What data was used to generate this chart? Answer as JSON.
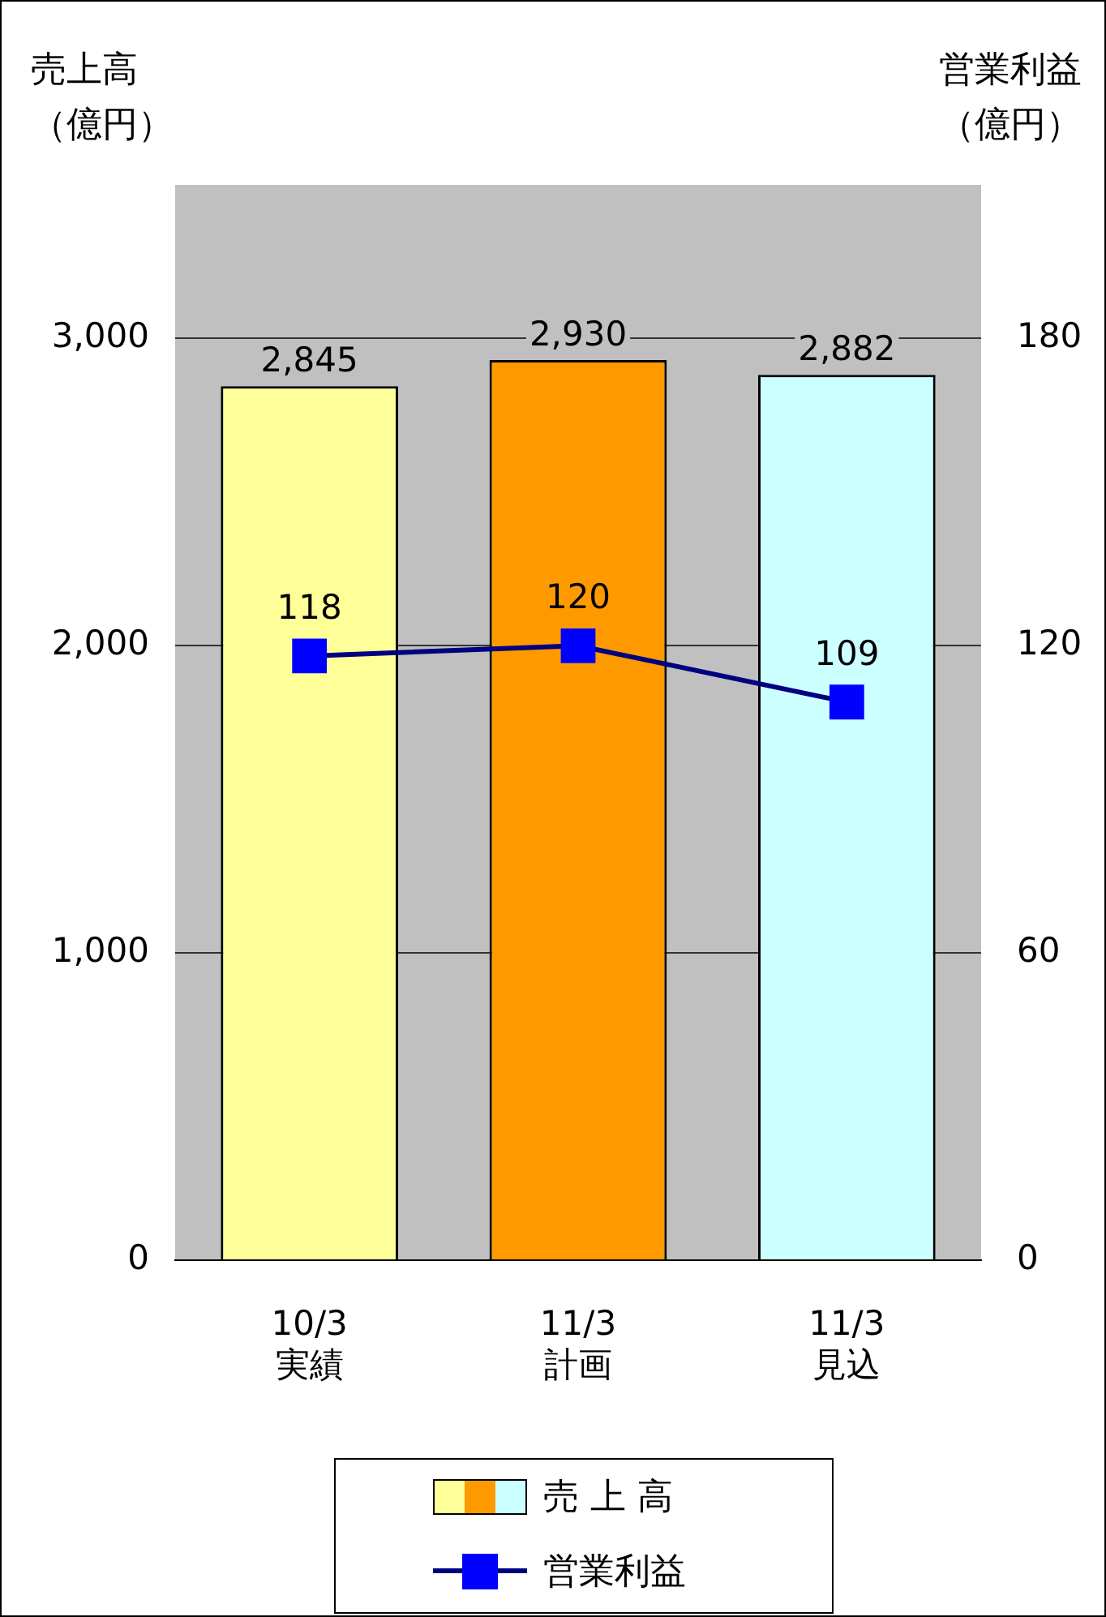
{
  "chart_data": {
    "type": "bar",
    "ylabel": "売上高（億円）",
    "y2label": "営業利益（億円）",
    "categories": [
      "10/3\n実績",
      "11/3\n計画",
      "11/3\n見込"
    ],
    "series": [
      {
        "name": "売 上 高",
        "colors": [
          "#ffff99",
          "#ff9900",
          "#ccffff"
        ],
        "values": [
          2845,
          2930,
          2882
        ],
        "value_labels": [
          "2,845",
          "2,930",
          "2,882"
        ]
      },
      {
        "type": "line",
        "name": "営業利益",
        "color": "#000080",
        "colors": [
          "#0000ff",
          "#0000ff",
          "#0000ff"
        ],
        "axis": "y2",
        "values": [
          118,
          120,
          109
        ],
        "value_labels": [
          "118",
          "120",
          "109"
        ]
      }
    ],
    "ylim": [
      0,
      3500
    ],
    "yticks": [
      0,
      {
        "value": 1000,
        "label": "1,000"
      },
      {
        "value": 2000,
        "label": "2,000"
      },
      {
        "value": 3000,
        "label": "3,000"
      }
    ],
    "y2lim": [
      0,
      210
    ],
    "y2ticks": [
      0,
      60,
      120,
      180
    ],
    "grid": "y",
    "legend": "bottom",
    "marker": "square",
    "line_style": "solid"
  }
}
